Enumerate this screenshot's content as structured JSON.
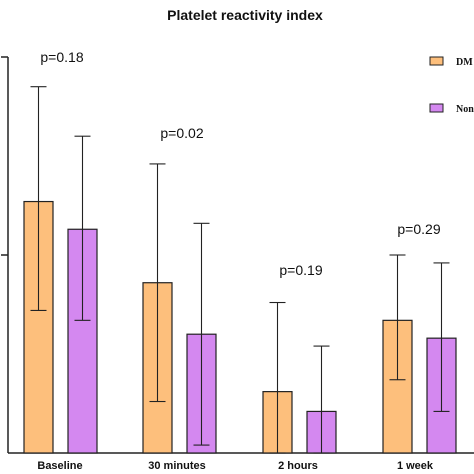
{
  "chart_data": {
    "type": "bar",
    "title": "Platelet reactivity index",
    "categories": [
      "Baseline",
      "30 minutes",
      "2 hours",
      "1 week"
    ],
    "p_values": [
      "p=0.18",
      "p=0.02",
      "p=0.19",
      "p=0.29"
    ],
    "ylim": [
      0,
      100
    ],
    "series": [
      {
        "name": "DM",
        "color": "#FDBF7C",
        "values": [
          63.5,
          43,
          15.5,
          33.5
        ],
        "err_low": [
          36,
          13,
          0,
          18.5
        ],
        "err_high": [
          92.5,
          73,
          38,
          50
        ]
      },
      {
        "name": "Non",
        "color": "#D488F0",
        "values": [
          56.5,
          30,
          10.5,
          29
        ],
        "err_low": [
          33.5,
          2,
          0,
          10.5
        ],
        "err_high": [
          80,
          58,
          27,
          48
        ]
      }
    ],
    "legend": "top-right"
  }
}
